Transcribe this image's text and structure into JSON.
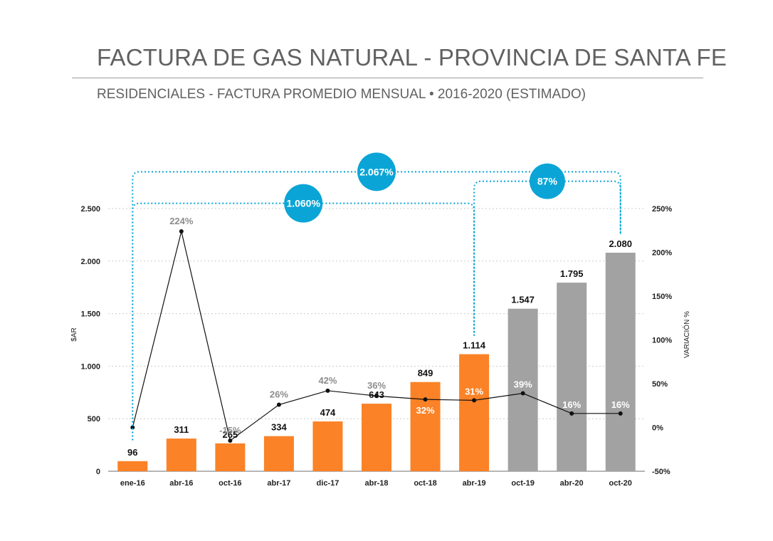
{
  "title": "FACTURA DE GAS NATURAL - PROVINCIA DE SANTA FE",
  "subtitle": "RESIDENCIALES - FACTURA PROMEDIO MENSUAL • 2016-2020 (ESTIMADO)",
  "colors": {
    "actual": "#fb8226",
    "estimated": "#a2a2a2",
    "bubble": "#0aa5d6",
    "line": "#111111"
  },
  "chart_data": {
    "type": "bar",
    "categories": [
      "ene-16",
      "abr-16",
      "oct-16",
      "abr-17",
      "dic-17",
      "abr-18",
      "oct-18",
      "abr-19",
      "oct-19",
      "abr-20",
      "oct-20"
    ],
    "series": [
      {
        "values": [
          96,
          311,
          265,
          334,
          474,
          643,
          849,
          1114,
          1547,
          1795,
          2080
        ],
        "labels": [
          "96",
          "311",
          "265",
          "334",
          "474",
          "643",
          "849",
          "1.114",
          "1.547",
          "1.795",
          "2.080"
        ],
        "estimated": [
          false,
          false,
          false,
          false,
          false,
          false,
          false,
          false,
          true,
          true,
          true
        ]
      },
      {
        "axis": "right",
        "type": "line",
        "x_index": [
          0,
          1,
          2,
          3,
          4,
          5,
          6,
          7,
          8,
          9,
          10
        ],
        "values": [
          0,
          224,
          -15,
          26,
          42,
          36,
          32,
          31,
          39,
          16,
          16
        ],
        "labels": [
          "",
          "224%",
          "-15%",
          "26%",
          "42%",
          "36%",
          "32%",
          "31%",
          "39%",
          "16%",
          "16%"
        ]
      }
    ],
    "ylabel": "$AR",
    "ylabel_right": "VARIACIÓN %",
    "ylim": [
      0,
      2500
    ],
    "ylim_right": [
      -50,
      250
    ],
    "y_ticks": [
      0,
      500,
      1000,
      1500,
      2000,
      2500
    ],
    "y_tick_labels": [
      "0",
      "500",
      "1.000",
      "1.500",
      "2.000",
      "2.500"
    ],
    "y_right_ticks": [
      -50,
      0,
      50,
      100,
      150,
      200,
      250
    ],
    "y_right_tick_labels": [
      "-50%",
      "0%",
      "50%",
      "100%",
      "150%",
      "200%",
      "250%"
    ],
    "grid": true,
    "annotations": [
      {
        "text": "2.067%",
        "from_index": 0,
        "to_index": 10,
        "level": 2850
      },
      {
        "text": "87%",
        "from_index": 7,
        "to_index": 10,
        "level": 2760
      },
      {
        "text": "1.060%",
        "from_index": 0,
        "to_index": 7,
        "level": 2550
      }
    ]
  }
}
